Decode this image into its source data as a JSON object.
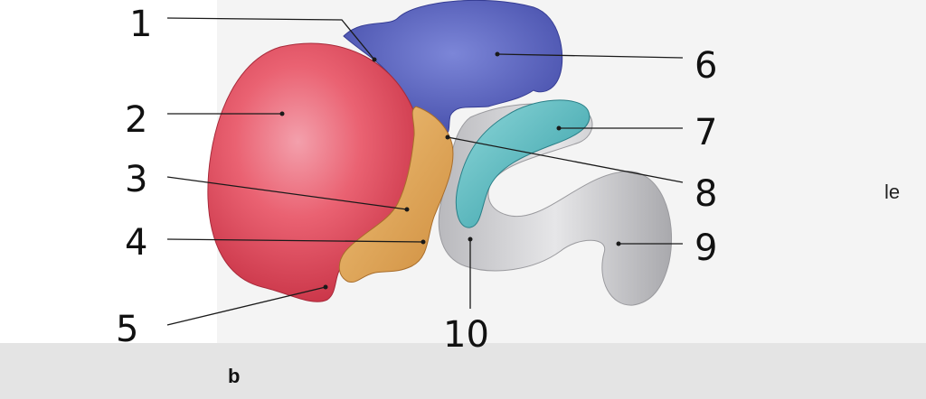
{
  "figure": {
    "caption": "b",
    "side_text": "le",
    "labels": [
      "1",
      "2",
      "3",
      "4",
      "5",
      "6",
      "7",
      "8",
      "9",
      "10"
    ]
  },
  "colors": {
    "background": "#ffffff",
    "page_gray": "#e6e6e6",
    "red_region": "#e8505e",
    "blue_region": "#5a63bd",
    "orange_region": "#dfa554",
    "teal_region": "#4fb0b6",
    "gray_tube": "#cfcfd2",
    "ink": "#111111"
  },
  "icons": [
    "pointer-line"
  ]
}
